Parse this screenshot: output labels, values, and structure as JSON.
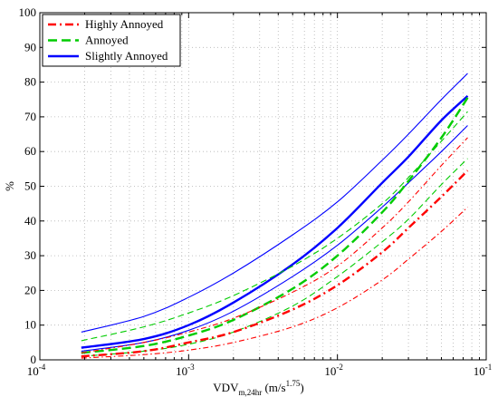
{
  "chart_data": {
    "type": "line",
    "xscale": "log",
    "xlim": [
      0.0001,
      0.1
    ],
    "ylim": [
      0,
      100
    ],
    "grid": true,
    "legend_placement": "top-left",
    "xlabel": {
      "main": "VDV",
      "sub": "m,24hr",
      "unit_open": " (m/s",
      "unit_sup": "1.75",
      "unit_close": ")"
    },
    "ylabel": "%",
    "xticks": [
      {
        "value": 0.0001,
        "base": "10",
        "exp": "-4"
      },
      {
        "value": 0.001,
        "base": "10",
        "exp": "-3"
      },
      {
        "value": 0.01,
        "base": "10",
        "exp": "-2"
      },
      {
        "value": 0.1,
        "base": "10",
        "exp": "-1"
      }
    ],
    "yticks": [
      "0",
      "10",
      "20",
      "30",
      "40",
      "50",
      "60",
      "70",
      "80",
      "90",
      "100"
    ],
    "legend": [
      {
        "label": "Highly Annoyed",
        "color": "#ff0000",
        "style": "dashdot"
      },
      {
        "label": "Annoyed",
        "color": "#00cc00",
        "style": "dashed"
      },
      {
        "label": "Slightly Annoyed",
        "color": "#0000ff",
        "style": "solid"
      }
    ],
    "series": [
      {
        "group": "Highly Annoyed",
        "role": "mean",
        "color": "#ff0000",
        "style": "dashdot",
        "x": [
          0.00019,
          0.0005,
          0.001,
          0.002,
          0.005,
          0.01,
          0.02,
          0.03,
          0.05,
          0.075
        ],
        "y": [
          1,
          2.5,
          5,
          8,
          14.5,
          21.5,
          31,
          38,
          47,
          54.5
        ]
      },
      {
        "group": "Highly Annoyed",
        "role": "upper",
        "color": "#ff0000",
        "style": "dashdot",
        "x": [
          0.00019,
          0.0005,
          0.001,
          0.002,
          0.005,
          0.01,
          0.02,
          0.03,
          0.05,
          0.075
        ],
        "y": [
          2,
          5,
          8,
          12,
          19.5,
          27,
          38,
          45.5,
          56,
          64
        ]
      },
      {
        "group": "Highly Annoyed",
        "role": "lower",
        "color": "#ff0000",
        "style": "dashdot",
        "x": [
          0.00019,
          0.0005,
          0.001,
          0.002,
          0.005,
          0.01,
          0.02,
          0.03,
          0.05,
          0.075
        ],
        "y": [
          0.5,
          1.5,
          2.8,
          5,
          9.5,
          15,
          23,
          29,
          37,
          44
        ]
      },
      {
        "group": "Annoyed",
        "role": "mean",
        "color": "#00cc00",
        "style": "dashed",
        "x": [
          0.00019,
          0.0005,
          0.001,
          0.002,
          0.005,
          0.01,
          0.02,
          0.03,
          0.05,
          0.075
        ],
        "y": [
          2,
          4,
          7,
          11.5,
          20.5,
          30,
          42.5,
          51.5,
          64,
          75.5
        ]
      },
      {
        "group": "Annoyed",
        "role": "upper",
        "color": "#00cc00",
        "style": "dashed",
        "x": [
          0.00019,
          0.0005,
          0.001,
          0.002,
          0.005,
          0.01,
          0.02,
          0.03,
          0.05,
          0.075
        ],
        "y": [
          5.5,
          9.5,
          13.5,
          18.5,
          27,
          35,
          45,
          52.5,
          63,
          71.5
        ]
      },
      {
        "group": "Annoyed",
        "role": "lower",
        "color": "#00cc00",
        "style": "dashed",
        "x": [
          0.00019,
          0.0005,
          0.001,
          0.002,
          0.005,
          0.01,
          0.02,
          0.03,
          0.05,
          0.075
        ],
        "y": [
          1,
          2.5,
          4.5,
          8,
          15.5,
          24,
          34,
          40.5,
          50.5,
          58
        ]
      },
      {
        "group": "Slightly Annoyed",
        "role": "mean",
        "color": "#0000ff",
        "style": "solid",
        "x": [
          0.00019,
          0.0005,
          0.001,
          0.002,
          0.005,
          0.01,
          0.02,
          0.03,
          0.05,
          0.075
        ],
        "y": [
          3.5,
          6,
          10,
          16.5,
          27.5,
          38,
          51,
          58.5,
          69,
          76
        ]
      },
      {
        "group": "Slightly Annoyed",
        "role": "upper",
        "color": "#0000ff",
        "style": "solid",
        "x": [
          0.00019,
          0.0005,
          0.001,
          0.002,
          0.005,
          0.01,
          0.02,
          0.03,
          0.05,
          0.075
        ],
        "y": [
          8,
          12.5,
          18,
          25,
          36,
          45.5,
          57.5,
          65,
          75,
          82.5
        ]
      },
      {
        "group": "Slightly Annoyed",
        "role": "lower",
        "color": "#0000ff",
        "style": "solid",
        "x": [
          0.00019,
          0.0005,
          0.001,
          0.002,
          0.005,
          0.01,
          0.02,
          0.03,
          0.05,
          0.075
        ],
        "y": [
          2.5,
          5,
          8.5,
          14,
          24,
          33,
          44,
          51,
          60,
          67.5
        ]
      }
    ]
  }
}
